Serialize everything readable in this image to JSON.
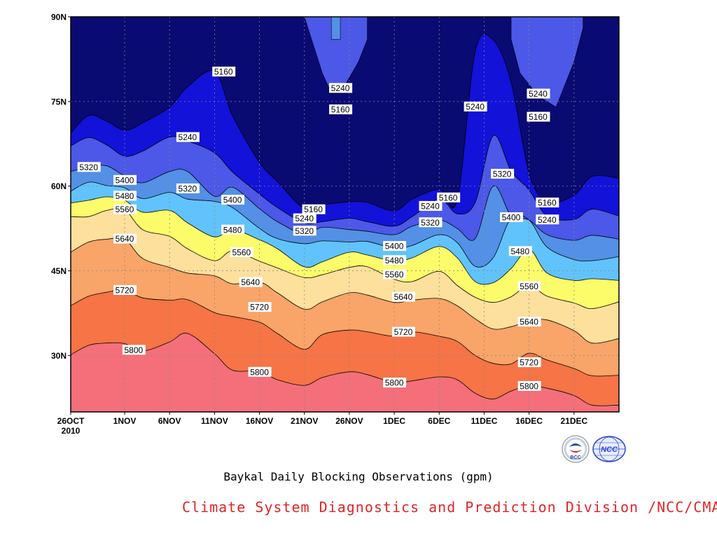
{
  "caption": "Baykal Daily Blocking Observations (gpm)",
  "credit": "Climate System Diagnostics and Prediction Division /NCC/CMA",
  "logos": {
    "left_text": "BCC",
    "right_text": "NCC",
    "left_colors": [
      "#1a3fa6",
      "#d3202a"
    ],
    "right_color": "#2a48c8"
  },
  "colors": {
    "bands": [
      "#f46f7a",
      "#f67445",
      "#f9a468",
      "#fde09c",
      "#fcfb6a",
      "#61c3fb",
      "#5390e6",
      "#4b58e8",
      "#1212d9",
      "#0a0a73"
    ],
    "frame": "#000000",
    "grid": "#888888"
  },
  "chart_data": {
    "type": "contour",
    "title": "",
    "xlabel": "",
    "ylabel": "",
    "x_range": [
      "2010-10-26",
      "2010-12-26"
    ],
    "y_range": [
      20,
      90
    ],
    "x_ticks": [
      {
        "date": "2010-10-26",
        "label": "26OCT",
        "sublabel": "2010"
      },
      {
        "date": "2010-11-01",
        "label": "1NOV"
      },
      {
        "date": "2010-11-06",
        "label": "6NOV"
      },
      {
        "date": "2010-11-11",
        "label": "11NOV"
      },
      {
        "date": "2010-11-16",
        "label": "16NOV"
      },
      {
        "date": "2010-11-21",
        "label": "21NOV"
      },
      {
        "date": "2010-11-26",
        "label": "26NOV"
      },
      {
        "date": "2010-12-01",
        "label": "1DEC"
      },
      {
        "date": "2010-12-06",
        "label": "6DEC"
      },
      {
        "date": "2010-12-11",
        "label": "11DEC"
      },
      {
        "date": "2010-12-16",
        "label": "16DEC"
      },
      {
        "date": "2010-12-21",
        "label": "21DEC"
      }
    ],
    "y_ticks": [
      {
        "value": 30,
        "label": "30N"
      },
      {
        "value": 45,
        "label": "45N"
      },
      {
        "value": 60,
        "label": "60N"
      },
      {
        "value": 75,
        "label": "75N"
      },
      {
        "value": 90,
        "label": "90N"
      }
    ],
    "grid": true,
    "levels": [
      5160,
      5240,
      5320,
      5400,
      5480,
      5560,
      5640,
      5720,
      5800
    ],
    "contour_x": [
      "2010-10-26",
      "2010-10-28",
      "2010-10-30",
      "2010-11-01",
      "2010-11-03",
      "2010-11-06",
      "2010-11-08",
      "2010-11-11",
      "2010-11-13",
      "2010-11-16",
      "2010-11-18",
      "2010-11-21",
      "2010-11-23",
      "2010-11-26",
      "2010-11-28",
      "2010-12-01",
      "2010-12-03",
      "2010-12-06",
      "2010-12-08",
      "2010-12-10",
      "2010-12-12",
      "2010-12-14",
      "2010-12-16",
      "2010-12-18",
      "2010-12-21",
      "2010-12-23",
      "2010-12-26"
    ],
    "contours": [
      {
        "level": 5800,
        "lat": [
          30.1,
          31.8,
          32.2,
          32.1,
          30.8,
          32.4,
          33.9,
          30.3,
          27.4,
          27.2,
          25.7,
          24.7,
          26.1,
          27.1,
          26.6,
          25.2,
          25.5,
          26.2,
          25.7,
          23.3,
          22.3,
          23.7,
          24.6,
          24.2,
          22.9,
          21.2,
          21.2
        ]
      },
      {
        "level": 5720,
        "lat": [
          38.8,
          40.5,
          41.2,
          41.6,
          40.2,
          39.8,
          39.9,
          37.6,
          36.9,
          35.9,
          33.9,
          31.1,
          33.7,
          34.5,
          34.2,
          33.4,
          34.2,
          33.4,
          32.5,
          30.0,
          28.6,
          28.5,
          30.4,
          29.2,
          27.7,
          26.4,
          26.5
        ]
      },
      {
        "level": 5640,
        "lat": [
          48.3,
          50.1,
          50.6,
          50.6,
          47.2,
          45.6,
          44.6,
          44.1,
          42.7,
          43.0,
          41.1,
          38.2,
          39.5,
          41.1,
          40.7,
          39.4,
          39.8,
          40.1,
          38.8,
          36.5,
          34.7,
          35.1,
          36.1,
          36.3,
          34.4,
          32.2,
          33.0
        ]
      },
      {
        "level": 5560,
        "lat": [
          54.6,
          54.6,
          55.7,
          55.8,
          52.3,
          51.1,
          48.9,
          46.8,
          48.5,
          46.7,
          45.5,
          43.8,
          44.3,
          45.6,
          45.7,
          43.5,
          43.1,
          44.9,
          42.4,
          40.3,
          39.4,
          40.4,
          42.4,
          40.5,
          39.3,
          38.3,
          39.5
        ]
      },
      {
        "level": 5480,
        "lat": [
          57.0,
          57.5,
          58.1,
          57.5,
          55.4,
          55.7,
          53.5,
          51.0,
          52.3,
          50.5,
          48.9,
          45.7,
          46.6,
          48.3,
          47.8,
          46.7,
          47.3,
          49.3,
          47.3,
          43.1,
          42.9,
          45.4,
          48.8,
          44.6,
          43.3,
          43.6,
          43.3
        ]
      },
      {
        "level": 5400,
        "lat": [
          59.1,
          60.7,
          60.1,
          59.7,
          57.8,
          58.9,
          57.7,
          57.3,
          56.2,
          52.5,
          50.7,
          49.8,
          50.3,
          50.1,
          50.2,
          49.0,
          49.5,
          51.4,
          50.0,
          45.8,
          47.3,
          54.3,
          54.0,
          49.2,
          47.0,
          46.8,
          47.5
        ]
      },
      {
        "level": 5320,
        "lat": [
          62.6,
          63.4,
          63.6,
          61.8,
          60.6,
          62.6,
          62.6,
          58.2,
          59.8,
          56.0,
          53.7,
          51.5,
          52.7,
          52.3,
          52.0,
          51.4,
          52.9,
          54.0,
          52.5,
          50.7,
          60.0,
          54.8,
          54.0,
          51.4,
          50.4,
          51.3,
          50.6
        ]
      },
      {
        "level": 5240,
        "lat": [
          67.1,
          68.6,
          67.3,
          65.3,
          66.2,
          68.7,
          68.0,
          65.9,
          62.5,
          58.6,
          56.2,
          53.5,
          53.7,
          54.3,
          53.7,
          52.9,
          54.6,
          57.7,
          55.1,
          57.1,
          68.9,
          62.7,
          59.3,
          54.7,
          54.1,
          55.9,
          54.7
        ]
      },
      {
        "level": 5160,
        "lat": [
          69.4,
          72.5,
          71.5,
          69.9,
          71.2,
          74.0,
          77.6,
          80.3,
          72.5,
          64.2,
          60.8,
          56.0,
          56.7,
          57.2,
          57.1,
          55.6,
          57.7,
          59.4,
          57.6,
          83.8,
          85.9,
          78.4,
          62.3,
          57.2,
          58.4,
          61.7,
          61.4
        ]
      }
    ],
    "contour_labels": [
      {
        "text": "5160",
        "date": "2010-11-12",
        "lat": 80.3
      },
      {
        "text": "5240",
        "date": "2010-11-25",
        "lat": 77.4
      },
      {
        "text": "5160",
        "date": "2010-11-25",
        "lat": 73.6
      },
      {
        "text": "5240",
        "date": "2010-12-10",
        "lat": 74.1
      },
      {
        "text": "5240",
        "date": "2010-12-17",
        "lat": 76.4
      },
      {
        "text": "5160",
        "date": "2010-12-17",
        "lat": 72.3
      },
      {
        "text": "5240",
        "date": "2010-11-08",
        "lat": 68.7
      },
      {
        "text": "5320",
        "date": "2010-10-28",
        "lat": 63.4
      },
      {
        "text": "5400",
        "date": "2010-11-01",
        "lat": 61.1
      },
      {
        "text": "5480",
        "date": "2010-11-01",
        "lat": 58.3
      },
      {
        "text": "5560",
        "date": "2010-11-01",
        "lat": 55.9
      },
      {
        "text": "5640",
        "date": "2010-11-01",
        "lat": 50.7
      },
      {
        "text": "5720",
        "date": "2010-11-01",
        "lat": 41.6
      },
      {
        "text": "5800",
        "date": "2010-11-02",
        "lat": 31.0
      },
      {
        "text": "5320",
        "date": "2010-11-08",
        "lat": 59.6
      },
      {
        "text": "5400",
        "date": "2010-11-13",
        "lat": 57.6
      },
      {
        "text": "5480",
        "date": "2010-11-13",
        "lat": 52.3
      },
      {
        "text": "5560",
        "date": "2010-11-14",
        "lat": 48.3
      },
      {
        "text": "5640",
        "date": "2010-11-15",
        "lat": 43.0
      },
      {
        "text": "5720",
        "date": "2010-11-16",
        "lat": 38.6
      },
      {
        "text": "5800",
        "date": "2010-11-16",
        "lat": 27.1
      },
      {
        "text": "5160",
        "date": "2010-11-22",
        "lat": 55.9
      },
      {
        "text": "5240",
        "date": "2010-11-21",
        "lat": 54.3
      },
      {
        "text": "5320",
        "date": "2010-11-21",
        "lat": 52.1
      },
      {
        "text": "5400",
        "date": "2010-12-01",
        "lat": 49.4
      },
      {
        "text": "5480",
        "date": "2010-12-01",
        "lat": 46.9
      },
      {
        "text": "5560",
        "date": "2010-12-01",
        "lat": 44.4
      },
      {
        "text": "5640",
        "date": "2010-12-02",
        "lat": 40.4
      },
      {
        "text": "5720",
        "date": "2010-12-02",
        "lat": 34.2
      },
      {
        "text": "5800",
        "date": "2010-12-01",
        "lat": 25.2
      },
      {
        "text": "5240",
        "date": "2010-12-05",
        "lat": 56.5
      },
      {
        "text": "5320",
        "date": "2010-12-05",
        "lat": 53.6
      },
      {
        "text": "5160",
        "date": "2010-12-07",
        "lat": 58.0
      },
      {
        "text": "5320",
        "date": "2010-12-13",
        "lat": 62.2
      },
      {
        "text": "5400",
        "date": "2010-12-14",
        "lat": 54.5
      },
      {
        "text": "5480",
        "date": "2010-12-15",
        "lat": 48.5
      },
      {
        "text": "5560",
        "date": "2010-12-16",
        "lat": 42.3
      },
      {
        "text": "5640",
        "date": "2010-12-16",
        "lat": 36.0
      },
      {
        "text": "5720",
        "date": "2010-12-16",
        "lat": 28.8
      },
      {
        "text": "5800",
        "date": "2010-12-16",
        "lat": 24.6
      },
      {
        "text": "5160",
        "date": "2010-12-18",
        "lat": 57.1
      },
      {
        "text": "5240",
        "date": "2010-12-18",
        "lat": 54.1
      }
    ],
    "upper_features": [
      {
        "kind": "5240-pocket",
        "dates": [
          "2010-11-21",
          "2010-11-23",
          "2010-11-25",
          "2010-11-28",
          "2010-11-28",
          "2010-11-27",
          "2010-11-25",
          "2010-11-24",
          "2010-11-23",
          "2010-11-22"
        ],
        "lats": [
          90,
          90,
          90,
          90,
          86,
          82,
          76.5,
          76.5,
          80,
          85
        ]
      },
      {
        "kind": "5320-pocket",
        "dates": [
          "2010-11-24",
          "2010-11-25",
          "2010-11-25",
          "2010-11-24"
        ],
        "lats": [
          90,
          90,
          86,
          86
        ]
      },
      {
        "kind": "5240-pocket",
        "dates": [
          "2010-12-14",
          "2010-12-17",
          "2010-12-20",
          "2010-12-22",
          "2010-12-22",
          "2010-12-21",
          "2010-12-19",
          "2010-12-17",
          "2010-12-15",
          "2010-12-14"
        ],
        "lats": [
          90,
          90,
          90,
          90,
          88,
          82,
          74,
          76,
          80,
          86
        ]
      }
    ]
  }
}
